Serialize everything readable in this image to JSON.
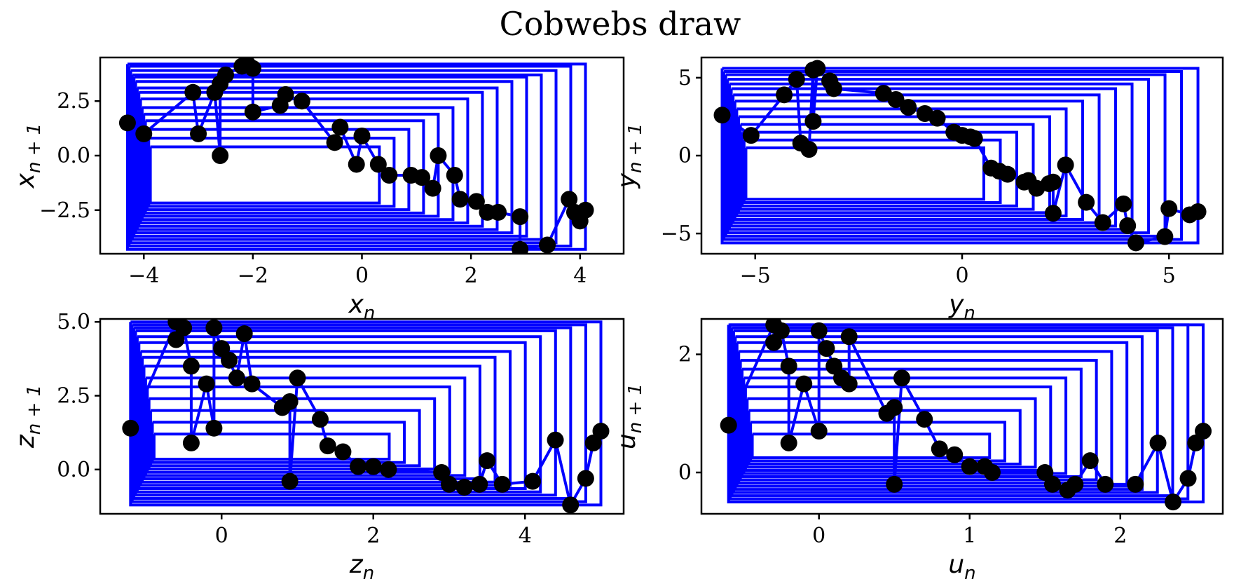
{
  "suptitle": "Cobwebs draw",
  "colors": {
    "web": "#0000ff",
    "point": "#000000",
    "axes": "#000000",
    "background": "#ffffff"
  },
  "chart_data": [
    {
      "type": "line",
      "xlabel": {
        "base": "x",
        "sub": "n"
      },
      "ylabel": {
        "base": "x",
        "sub": "n + 1"
      },
      "xlim": [
        -4.8,
        4.8
      ],
      "ylim": [
        -4.5,
        4.5
      ],
      "xticks": [
        -4,
        -2,
        0,
        2,
        4
      ],
      "xtick_labels": [
        "−4",
        "−2",
        "0",
        "2",
        "4"
      ],
      "yticks": [
        -2.5,
        0.0,
        2.5
      ],
      "ytick_labels": [
        "−2.5",
        "0.0",
        "2.5"
      ],
      "points": [
        [
          -4.3,
          1.5
        ],
        [
          -4.0,
          1.0
        ],
        [
          -3.1,
          2.9
        ],
        [
          -3.0,
          1.0
        ],
        [
          -2.6,
          0.0
        ],
        [
          -2.7,
          2.9
        ],
        [
          -2.6,
          3.3
        ],
        [
          -2.5,
          3.7
        ],
        [
          -2.2,
          4.1
        ],
        [
          -2.1,
          4.2
        ],
        [
          -2.0,
          4.0
        ],
        [
          -2.0,
          2.0
        ],
        [
          -1.5,
          2.3
        ],
        [
          -1.4,
          2.8
        ],
        [
          -1.1,
          2.5
        ],
        [
          -0.4,
          1.3
        ],
        [
          -0.5,
          0.6
        ],
        [
          -0.1,
          -0.4
        ],
        [
          0.0,
          0.9
        ],
        [
          0.3,
          -0.4
        ],
        [
          0.5,
          -0.9
        ],
        [
          0.9,
          -0.9
        ],
        [
          1.1,
          -1.0
        ],
        [
          1.3,
          -1.5
        ],
        [
          1.4,
          0.0
        ],
        [
          1.7,
          -0.9
        ],
        [
          1.8,
          -2.0
        ],
        [
          2.1,
          -2.1
        ],
        [
          2.3,
          -2.6
        ],
        [
          2.5,
          -2.6
        ],
        [
          2.9,
          -2.8
        ],
        [
          2.9,
          -4.3
        ],
        [
          3.4,
          -4.1
        ],
        [
          3.8,
          -2.0
        ],
        [
          3.9,
          -2.6
        ],
        [
          4.0,
          -3.0
        ],
        [
          4.1,
          -2.5
        ]
      ],
      "web_levels": [
        4.3,
        4.1,
        3.9,
        3.7,
        3.6,
        3.4,
        3.1,
        2.9,
        2.6,
        2.2,
        1.9,
        1.6,
        1.2,
        0.8,
        0.4
      ]
    },
    {
      "type": "line",
      "xlabel": {
        "base": "y",
        "sub": "n"
      },
      "ylabel": {
        "base": "y",
        "sub": "n + 1"
      },
      "xlim": [
        -6.3,
        6.3
      ],
      "ylim": [
        -6.3,
        6.3
      ],
      "xticks": [
        -5,
        0,
        5
      ],
      "xtick_labels": [
        "−5",
        "0",
        "5"
      ],
      "yticks": [
        -5,
        0,
        5
      ],
      "ytick_labels": [
        "−5",
        "0",
        "5"
      ],
      "points": [
        [
          -5.8,
          2.6
        ],
        [
          -5.1,
          1.3
        ],
        [
          -4.3,
          3.9
        ],
        [
          -4.0,
          4.9
        ],
        [
          -3.6,
          5.5
        ],
        [
          -3.5,
          5.6
        ],
        [
          -3.2,
          4.8
        ],
        [
          -3.1,
          4.3
        ],
        [
          -3.6,
          2.2
        ],
        [
          -3.9,
          0.8
        ],
        [
          -3.7,
          0.4
        ],
        [
          -1.9,
          4.0
        ],
        [
          -1.6,
          3.6
        ],
        [
          -1.3,
          3.1
        ],
        [
          -0.9,
          2.7
        ],
        [
          -0.6,
          2.4
        ],
        [
          -0.2,
          1.5
        ],
        [
          0.0,
          1.3
        ],
        [
          0.2,
          1.2
        ],
        [
          0.3,
          1.1
        ],
        [
          0.7,
          -0.8
        ],
        [
          0.9,
          -1.0
        ],
        [
          1.1,
          -1.2
        ],
        [
          1.5,
          -1.7
        ],
        [
          1.6,
          -1.6
        ],
        [
          1.8,
          -2.1
        ],
        [
          2.1,
          -1.8
        ],
        [
          2.5,
          -0.6
        ],
        [
          2.2,
          -1.7
        ],
        [
          2.2,
          -3.7
        ],
        [
          3.0,
          -3.0
        ],
        [
          3.4,
          -4.3
        ],
        [
          3.9,
          -3.1
        ],
        [
          4.0,
          -4.5
        ],
        [
          4.2,
          -5.6
        ],
        [
          4.9,
          -5.2
        ],
        [
          5.0,
          -3.4
        ],
        [
          5.5,
          -3.8
        ],
        [
          5.7,
          -3.6
        ]
      ],
      "web_levels": [
        5.6,
        5.4,
        5.2,
        4.9,
        4.6,
        4.3,
        3.9,
        3.5,
        3.0,
        2.5,
        2.0,
        1.5,
        1.0,
        0.5
      ]
    },
    {
      "type": "line",
      "xlabel": {
        "base": "z",
        "sub": "n"
      },
      "ylabel": {
        "base": "z",
        "sub": "n + 1"
      },
      "xlim": [
        -1.6,
        5.3
      ],
      "ylim": [
        -1.5,
        5.1
      ],
      "xticks": [
        0,
        2,
        4
      ],
      "xtick_labels": [
        "0",
        "2",
        "4"
      ],
      "yticks": [
        0.0,
        2.5,
        5.0
      ],
      "ytick_labels": [
        "0.0",
        "2.5",
        "5.0"
      ],
      "points": [
        [
          -1.2,
          1.4
        ],
        [
          -0.6,
          5.0
        ],
        [
          -0.5,
          4.8
        ],
        [
          -0.6,
          4.4
        ],
        [
          -0.4,
          3.5
        ],
        [
          -0.2,
          2.9
        ],
        [
          -0.4,
          0.9
        ],
        [
          -0.1,
          1.4
        ],
        [
          -0.1,
          4.8
        ],
        [
          0.0,
          4.1
        ],
        [
          0.1,
          3.7
        ],
        [
          0.2,
          3.1
        ],
        [
          0.4,
          2.9
        ],
        [
          0.3,
          4.6
        ],
        [
          0.8,
          2.1
        ],
        [
          0.9,
          2.3
        ],
        [
          1.0,
          3.1
        ],
        [
          1.3,
          1.7
        ],
        [
          1.4,
          0.8
        ],
        [
          1.6,
          0.6
        ],
        [
          1.8,
          0.1
        ],
        [
          2.0,
          0.1
        ],
        [
          2.2,
          -0.0
        ],
        [
          0.9,
          -0.4
        ],
        [
          2.9,
          -0.1
        ],
        [
          3.0,
          -0.5
        ],
        [
          3.2,
          -0.6
        ],
        [
          3.4,
          -0.5
        ],
        [
          3.7,
          -0.5
        ],
        [
          4.1,
          -0.4
        ],
        [
          4.6,
          -1.2
        ],
        [
          4.8,
          -0.3
        ],
        [
          4.9,
          0.9
        ],
        [
          5.0,
          1.3
        ],
        [
          4.4,
          1.0
        ],
        [
          3.5,
          0.3
        ]
      ],
      "web_levels": [
        5.1,
        4.9,
        4.8,
        4.7,
        4.5,
        4.3,
        4.0,
        3.8,
        3.5,
        3.1,
        2.8,
        2.4,
        2.0,
        1.6,
        1.2
      ]
    },
    {
      "type": "line",
      "xlabel": {
        "base": "u",
        "sub": "n"
      },
      "ylabel": {
        "base": "u",
        "sub": "n + 1"
      },
      "xlim": [
        -0.78,
        2.68
      ],
      "ylim": [
        -0.7,
        2.6
      ],
      "xticks": [
        0,
        1,
        2
      ],
      "xtick_labels": [
        "0",
        "1",
        "2"
      ],
      "yticks": [
        0,
        2
      ],
      "ytick_labels": [
        "0",
        "2"
      ],
      "points": [
        [
          -0.6,
          0.8
        ],
        [
          -0.3,
          2.5
        ],
        [
          -0.25,
          2.4
        ],
        [
          -0.3,
          2.2
        ],
        [
          -0.2,
          1.8
        ],
        [
          -0.1,
          1.5
        ],
        [
          -0.2,
          0.5
        ],
        [
          0.0,
          0.7
        ],
        [
          0.0,
          2.4
        ],
        [
          0.05,
          2.1
        ],
        [
          0.1,
          1.8
        ],
        [
          0.15,
          1.6
        ],
        [
          0.2,
          1.5
        ],
        [
          0.2,
          2.3
        ],
        [
          0.45,
          1.0
        ],
        [
          0.5,
          1.1
        ],
        [
          0.55,
          1.6
        ],
        [
          0.7,
          0.9
        ],
        [
          0.8,
          0.4
        ],
        [
          0.9,
          0.3
        ],
        [
          1.0,
          0.1
        ],
        [
          1.1,
          0.1
        ],
        [
          1.15,
          0.0
        ],
        [
          0.5,
          -0.2
        ],
        [
          1.5,
          -0.0
        ],
        [
          1.55,
          -0.2
        ],
        [
          1.65,
          -0.3
        ],
        [
          1.7,
          -0.2
        ],
        [
          1.9,
          -0.2
        ],
        [
          2.1,
          -0.2
        ],
        [
          2.35,
          -0.5
        ],
        [
          2.45,
          -0.1
        ],
        [
          2.5,
          0.5
        ],
        [
          2.55,
          0.7
        ],
        [
          2.25,
          0.5
        ],
        [
          1.8,
          0.2
        ]
      ],
      "web_levels": [
        2.6,
        2.5,
        2.45,
        2.4,
        2.3,
        2.2,
        2.05,
        1.9,
        1.75,
        1.6,
        1.45,
        1.25,
        1.05,
        0.85,
        0.65
      ]
    }
  ]
}
